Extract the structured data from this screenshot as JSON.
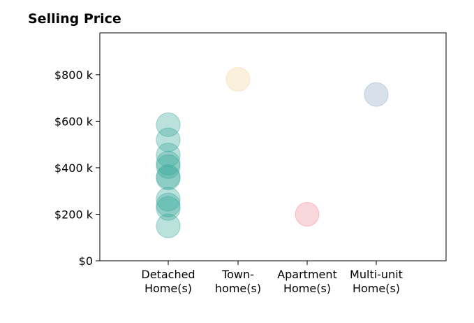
{
  "chart_data": {
    "type": "scatter",
    "title": "Selling Price",
    "xlabel": "",
    "ylabel": "",
    "categories": [
      [
        "Detached",
        "Home(s)"
      ],
      [
        "Town-",
        "home(s)"
      ],
      [
        "Apartment",
        "Home(s)"
      ],
      [
        "Multi-unit",
        "Home(s)"
      ]
    ],
    "y_ticks": [
      {
        "value": 0,
        "label": "$0"
      },
      {
        "value": 200,
        "label": "$200 k"
      },
      {
        "value": 400,
        "label": "$400 k"
      },
      {
        "value": 600,
        "label": "$600 k"
      },
      {
        "value": 800,
        "label": "$800 k"
      }
    ],
    "ylim": [
      0,
      980
    ],
    "grid": false,
    "series": [
      {
        "category_index": 0,
        "color": "#3aa89a",
        "values": [
          585,
          520,
          455,
          420,
          405,
          362,
          355,
          265,
          240,
          225,
          150
        ]
      },
      {
        "category_index": 1,
        "color": "#f2d49b",
        "values": [
          780
        ]
      },
      {
        "category_index": 2,
        "color": "#ee8a93",
        "values": [
          200
        ]
      },
      {
        "category_index": 3,
        "color": "#8fa9c2",
        "values": [
          715
        ]
      }
    ]
  }
}
